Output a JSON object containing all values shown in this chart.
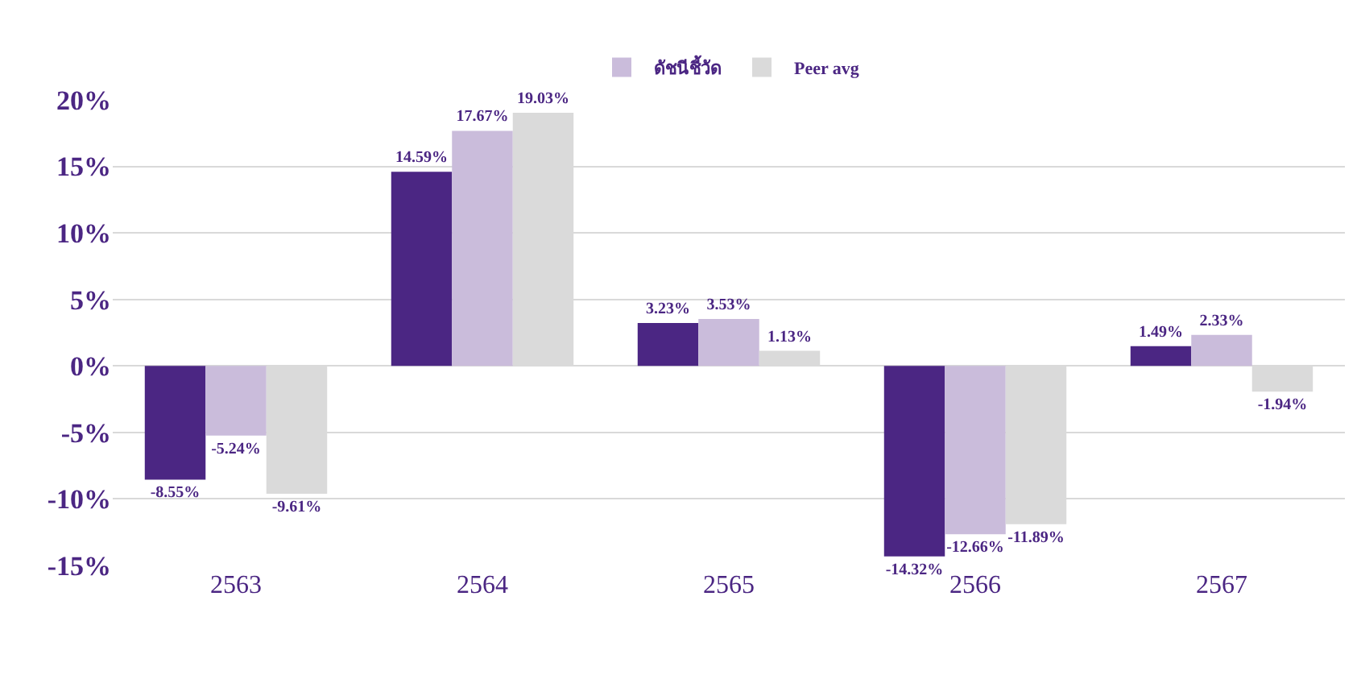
{
  "chart_data": {
    "type": "bar",
    "categories": [
      "2563",
      "2564",
      "2565",
      "2566",
      "2567"
    ],
    "series": [
      {
        "color": "#4b2683",
        "values": [
          -8.55,
          14.59,
          3.23,
          -14.32,
          1.49
        ],
        "value_labels": [
          "-8.55%",
          "14.59%",
          "3.23%",
          "-14.32%",
          "1.49%"
        ]
      },
      {
        "name": "ดัชนีชี้วัด",
        "color": "#cabcdb",
        "values": [
          -5.24,
          17.67,
          3.53,
          -12.66,
          2.33
        ],
        "value_labels": [
          "-5.24%",
          "17.67%",
          "3.53%",
          "-12.66%",
          "2.33%"
        ]
      },
      {
        "name": "Peer avg",
        "color": "#dadada",
        "values": [
          -9.61,
          19.03,
          1.13,
          -11.89,
          -1.94
        ],
        "value_labels": [
          "-9.61%",
          "19.03%",
          "1.13%",
          "-11.89%",
          "-1.94%"
        ]
      }
    ],
    "ylim": [
      -15,
      20
    ],
    "yticks": [
      {
        "value": -15,
        "label": "-15%"
      },
      {
        "value": -10,
        "label": "-10%"
      },
      {
        "value": -5,
        "label": "-5%"
      },
      {
        "value": 0,
        "label": "0%"
      },
      {
        "value": 5,
        "label": "5%"
      },
      {
        "value": 10,
        "label": "10%"
      },
      {
        "value": 15,
        "label": "15%"
      },
      {
        "value": 20,
        "label": "20%"
      }
    ],
    "grid": "y",
    "legend": "top"
  }
}
